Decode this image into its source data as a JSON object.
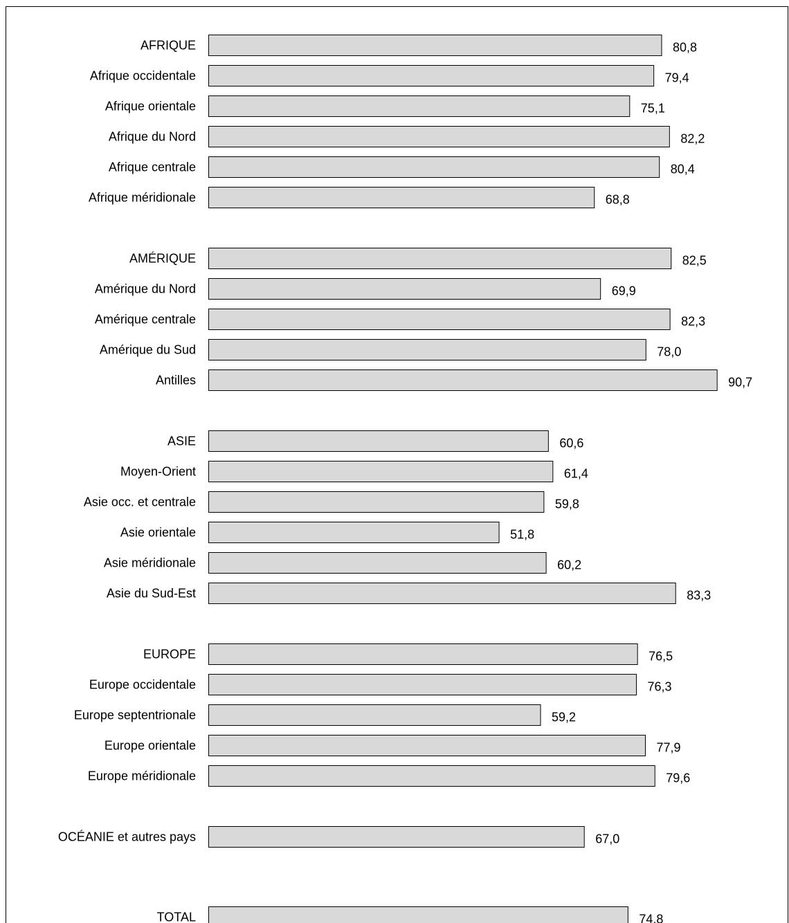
{
  "chart_data": {
    "type": "bar",
    "orientation": "horizontal",
    "title": "",
    "xlabel": "",
    "ylabel": "",
    "grid": false,
    "legend": "none",
    "bar_color": "#d9d9d9",
    "bar_edge_color": "#000000",
    "categories": [
      "AFRIQUE",
      "Afrique occidentale",
      "Afrique orientale",
      "Afrique du Nord",
      "Afrique centrale",
      "Afrique méridionale",
      "AMÉRIQUE",
      "Amérique du Nord",
      "Amérique centrale",
      "Amérique du Sud",
      "Antilles",
      "ASIE",
      "Moyen-Orient",
      "Asie occ. et centrale",
      "Asie orientale",
      "Asie méridionale",
      "Asie du Sud-Est",
      "EUROPE",
      "Europe occidentale",
      "Europe septentrionale",
      "Europe orientale",
      "Europe méridionale",
      "OCÉANIE et autres pays",
      "TOTAL"
    ],
    "values": [
      80.8,
      79.4,
      75.1,
      82.2,
      80.4,
      68.8,
      82.5,
      69.9,
      82.3,
      78.0,
      90.7,
      60.6,
      61.4,
      59.8,
      51.8,
      60.2,
      83.3,
      76.5,
      76.3,
      59.2,
      77.9,
      79.6,
      67.0,
      74.8
    ],
    "value_labels": [
      "80,8",
      "79,4",
      "75,1",
      "82,2",
      "80,4",
      "68,8",
      "82,5",
      "69,9",
      "82,3",
      "78,0",
      "90,7",
      "60,6",
      "61,4",
      "59,8",
      "51,8",
      "60,2",
      "83,3",
      "76,5",
      "76,3",
      "59,2",
      "77,9",
      "79,6",
      "67,0",
      "74,8"
    ],
    "groups": [
      {
        "start": 0,
        "count": 6
      },
      {
        "start": 6,
        "count": 5
      },
      {
        "start": 11,
        "count": 6
      },
      {
        "start": 17,
        "count": 5
      },
      {
        "start": 22,
        "count": 1
      },
      {
        "start": 23,
        "count": 1
      }
    ]
  }
}
